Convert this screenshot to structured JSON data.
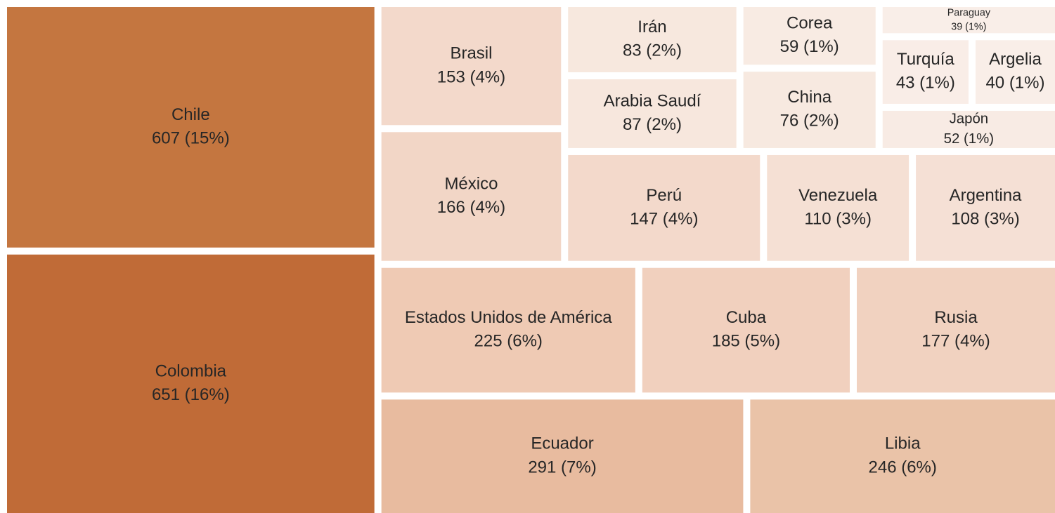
{
  "chart_data": {
    "type": "treemap",
    "categories": [
      "Chile",
      "Colombia",
      "Brasil",
      "México",
      "Irán",
      "Arabia Saudí",
      "Corea",
      "China",
      "Paraguay",
      "Turquía",
      "Argelia",
      "Japón",
      "Perú",
      "Venezuela",
      "Argentina",
      "Estados Unidos de América",
      "Cuba",
      "Rusia",
      "Ecuador",
      "Libia"
    ],
    "values": [
      607,
      651,
      153,
      166,
      83,
      87,
      59,
      76,
      39,
      43,
      40,
      52,
      147,
      110,
      108,
      225,
      185,
      177,
      291,
      246
    ],
    "value_labels": [
      "607 (15%)",
      "651 (16%)",
      "153 (4%)",
      "166 (4%)",
      "83 (2%)",
      "87 (2%)",
      "59 (1%)",
      "76 (2%)",
      "39 (1%)",
      "43 (1%)",
      "40 (1%)",
      "52 (1%)",
      "147 (4%)",
      "110 (3%)",
      "108 (3%)",
      "225 (6%)",
      "185 (5%)",
      "177 (4%)",
      "291 (7%)",
      "246 (6%)"
    ],
    "colors": [
      "#c47640",
      "#c06b37",
      "#f3d9cb",
      "#f2d6c6",
      "#f7e8de",
      "#f7e7dd",
      "#f8ebe3",
      "#f7e9e0",
      "#f9eee8",
      "#f9ede7",
      "#f9eee8",
      "#f8ebe4",
      "#f3d9cb",
      "#f5e0d4",
      "#f5e0d5",
      "#efcab4",
      "#f1d0be",
      "#f1d2c0",
      "#e8bb9f",
      "#eac3a8"
    ]
  }
}
